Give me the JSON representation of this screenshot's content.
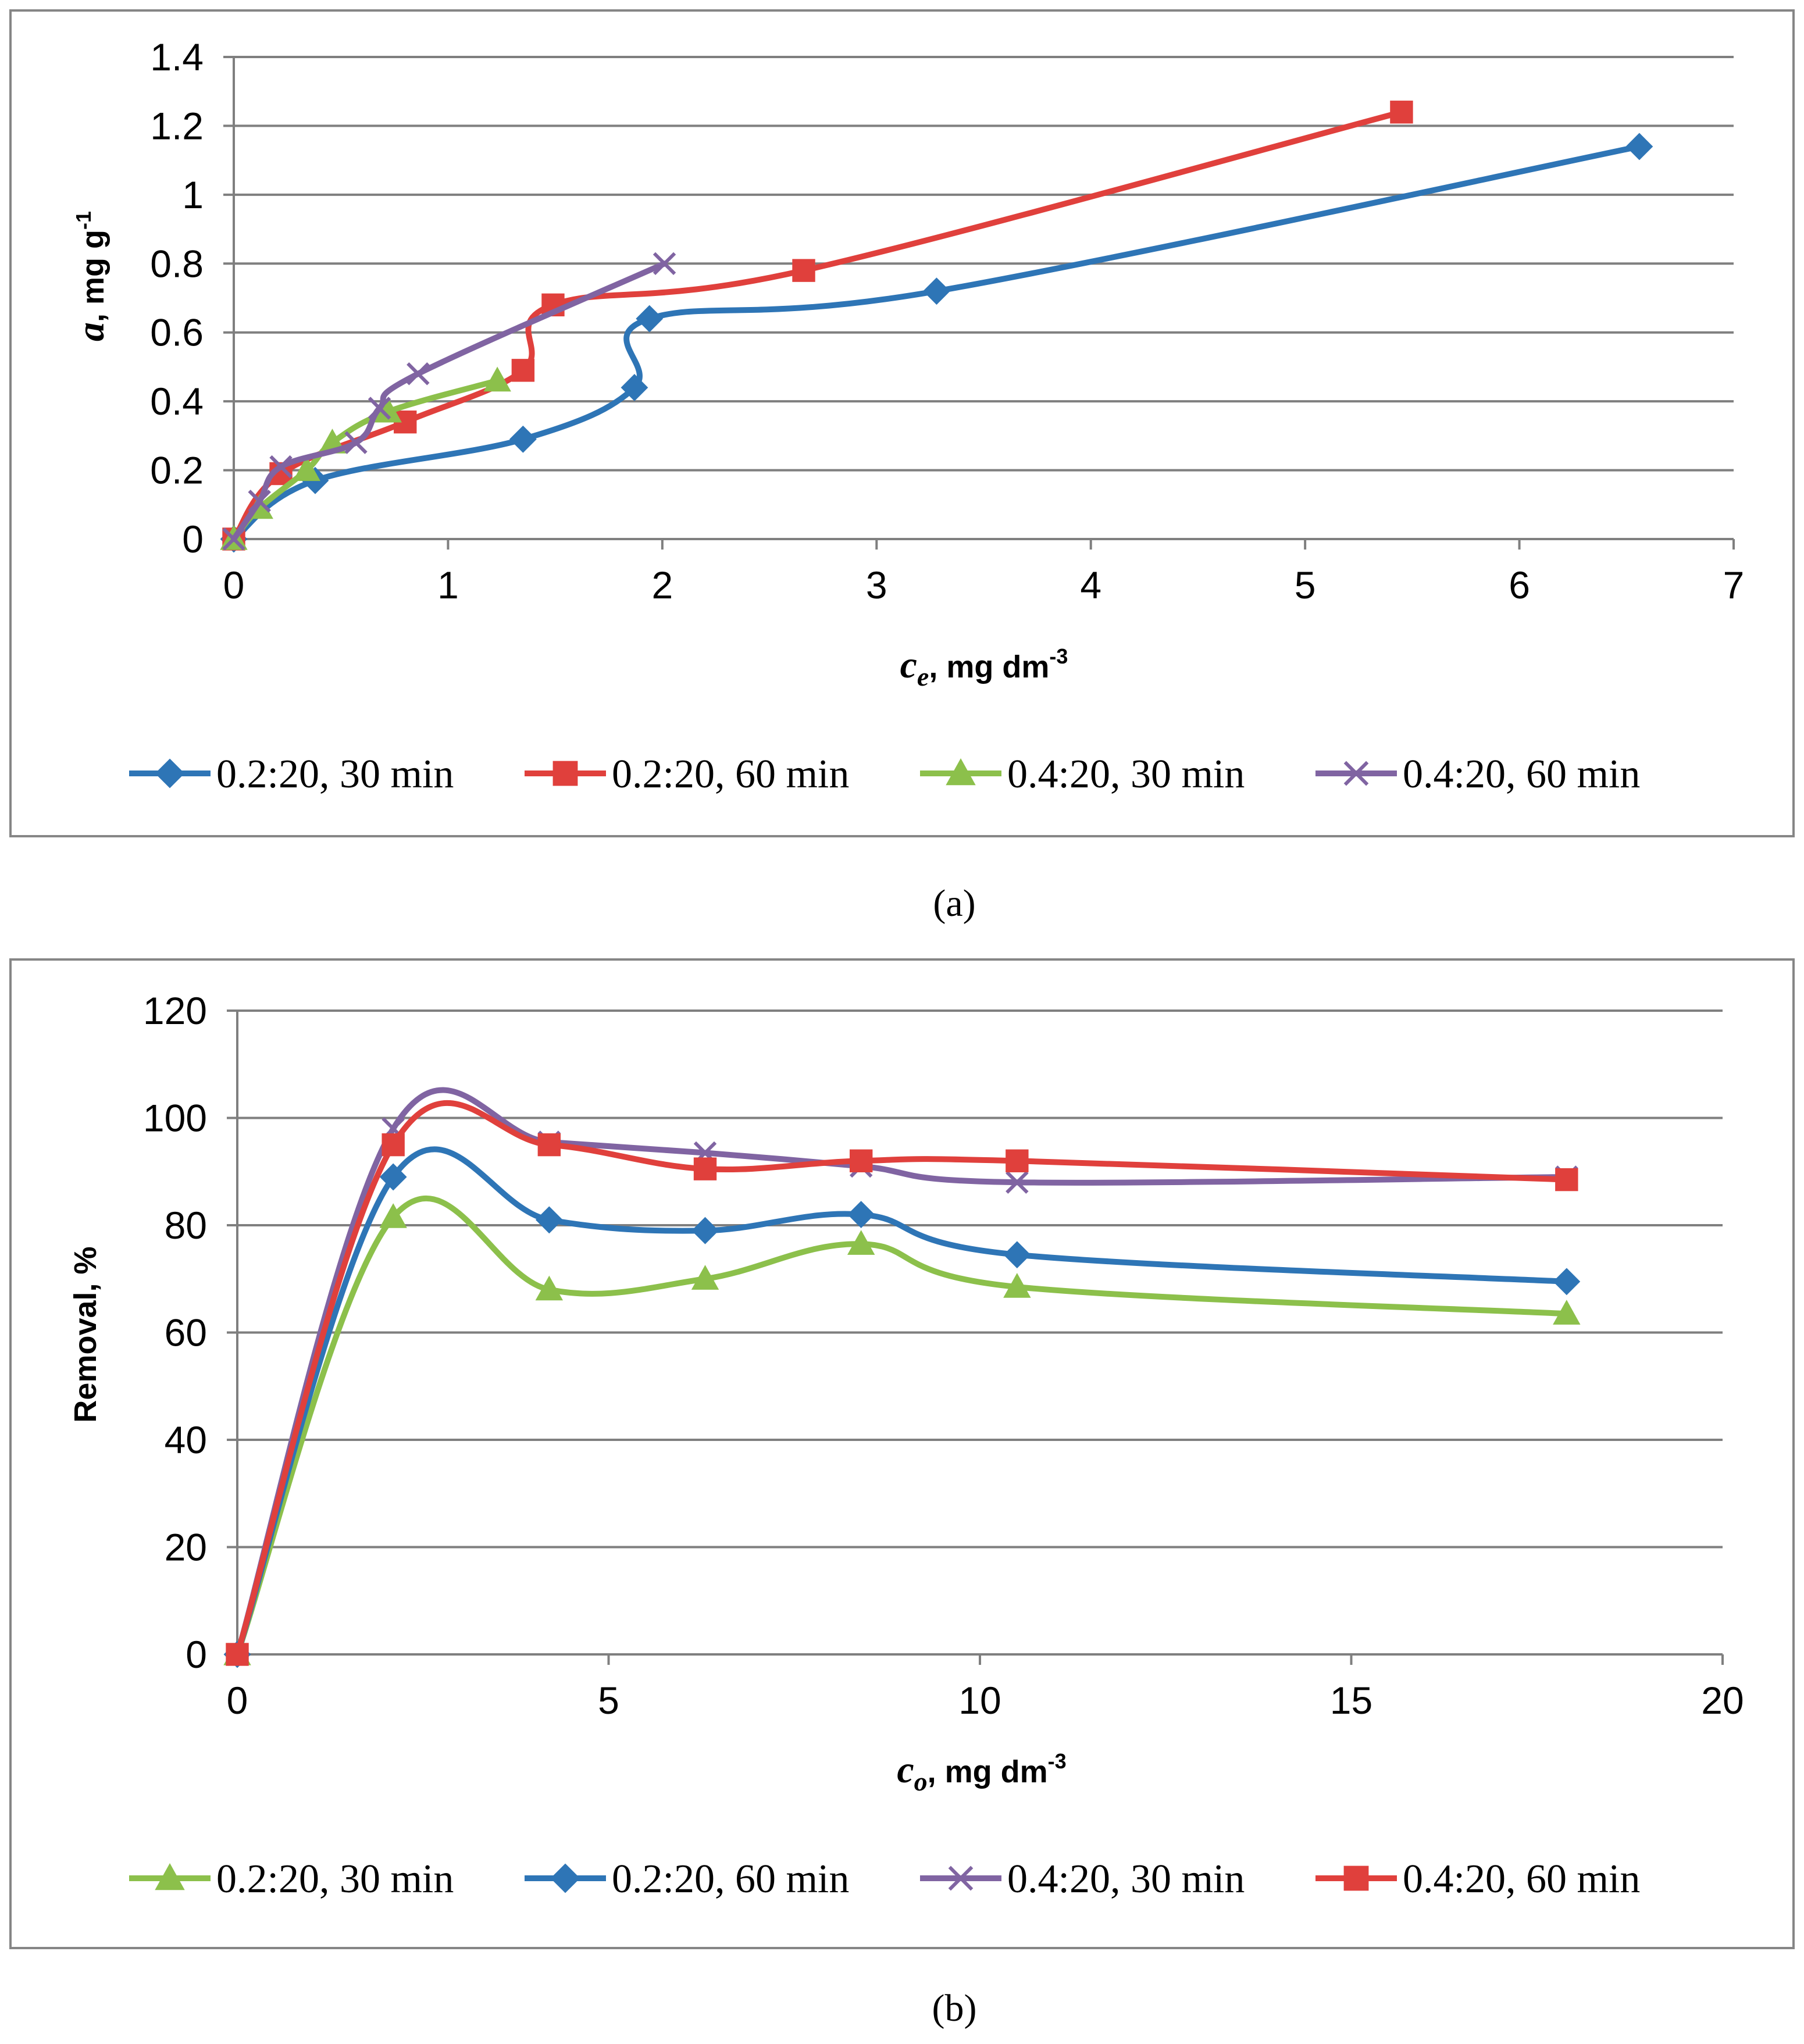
{
  "chart_data": [
    {
      "type": "line",
      "panel_label": "(a)",
      "xlabel_main": "c",
      "xlabel_sub": "e",
      "xlabel_rest": ", mg dm",
      "xlabel_sup": "-3",
      "ylabel_main": "a",
      "ylabel_rest": ", mg g",
      "ylabel_sup": "-1",
      "xlim": [
        0,
        7
      ],
      "ylim": [
        0,
        1.4
      ],
      "xticks": [
        0,
        1,
        2,
        3,
        4,
        5,
        6,
        7
      ],
      "yticks": [
        0,
        0.2,
        0.4,
        0.6,
        0.8,
        1,
        1.2,
        1.4
      ],
      "xtick_labels": [
        "0",
        "1",
        "2",
        "3",
        "4",
        "5",
        "6",
        "7"
      ],
      "ytick_labels": [
        "0",
        "0.2",
        "0.4",
        "0.6",
        "0.8",
        "1",
        "1.2",
        "1.4"
      ],
      "grid": true,
      "legend_position": "bottom",
      "series": [
        {
          "name": "0.2:20, 30 min",
          "color": "#2e75b6",
          "marker": "diamond",
          "x": [
            0,
            0.38,
            1.35,
            1.87,
            1.94,
            3.28,
            6.56
          ],
          "y": [
            0,
            0.17,
            0.29,
            0.44,
            0.64,
            0.72,
            1.14
          ]
        },
        {
          "name": "0.2:20, 60 min",
          "color": "#e0403c",
          "marker": "square",
          "x": [
            0,
            0.22,
            0.8,
            1.35,
            1.49,
            2.66,
            5.45
          ],
          "y": [
            0,
            0.19,
            0.34,
            0.49,
            0.68,
            0.78,
            1.24
          ]
        },
        {
          "name": "0.4:20, 30 min",
          "color": "#8cc04b",
          "marker": "triangle",
          "x": [
            0,
            0.12,
            0.34,
            0.46,
            0.72,
            1.23
          ],
          "y": [
            0,
            0.09,
            0.2,
            0.28,
            0.37,
            0.46
          ]
        },
        {
          "name": "0.4:20, 60 min",
          "color": "#8064a2",
          "marker": "x",
          "x": [
            0,
            0.12,
            0.22,
            0.57,
            0.68,
            0.86,
            2.01
          ],
          "y": [
            0,
            0.11,
            0.21,
            0.28,
            0.38,
            0.48,
            0.8
          ]
        }
      ]
    },
    {
      "type": "line",
      "panel_label": "(b)",
      "xlabel_main": "c",
      "xlabel_sub": "o",
      "xlabel_rest": ", mg dm",
      "xlabel_sup": "-3",
      "ylabel": "Removal, %",
      "xlim": [
        0,
        20
      ],
      "ylim": [
        0,
        120
      ],
      "xticks": [
        0,
        5,
        10,
        15,
        20
      ],
      "yticks": [
        0,
        20,
        40,
        60,
        80,
        100,
        120
      ],
      "xtick_labels": [
        "0",
        "5",
        "10",
        "15",
        "20"
      ],
      "ytick_labels": [
        "0",
        "20",
        "40",
        "60",
        "80",
        "100",
        "120"
      ],
      "grid": true,
      "legend_position": "bottom",
      "series": [
        {
          "name": "0.2:20, 30 min",
          "color": "#8cc04b",
          "marker": "triangle",
          "x": [
            0,
            2.1,
            4.2,
            6.3,
            8.4,
            10.5,
            17.9
          ],
          "y": [
            0,
            81.5,
            68,
            70,
            76.5,
            68.5,
            63.5
          ]
        },
        {
          "name": "0.2:20, 60 min",
          "color": "#2e75b6",
          "marker": "diamond",
          "x": [
            0,
            2.1,
            4.2,
            6.3,
            8.4,
            10.5,
            17.9
          ],
          "y": [
            0,
            89,
            81,
            79,
            82,
            74.5,
            69.5
          ]
        },
        {
          "name": "0.4:20, 30 min",
          "color": "#8064a2",
          "marker": "x",
          "x": [
            0,
            2.1,
            4.2,
            6.3,
            8.4,
            10.5,
            17.9
          ],
          "y": [
            0,
            98,
            95.5,
            93.5,
            91,
            88,
            89
          ]
        },
        {
          "name": "0.4:20, 60 min",
          "color": "#e0403c",
          "marker": "square",
          "x": [
            0,
            2.1,
            4.2,
            6.3,
            8.4,
            10.5,
            17.9
          ],
          "y": [
            0,
            95,
            95,
            90.5,
            92,
            92,
            88.5
          ]
        }
      ]
    }
  ]
}
